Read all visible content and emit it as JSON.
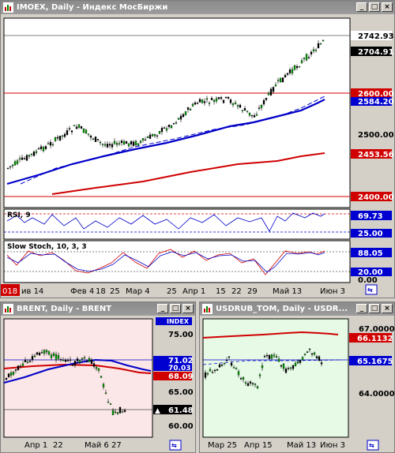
{
  "main": {
    "title": "IMOEX, Daily - Индекс МосБиржи",
    "prices": {
      "p1": "2742.93",
      "p2": "2704.91",
      "p3": "2600.00",
      "p4": "2584.20",
      "p5": "2500.00",
      "p6": "2453.56",
      "p7": "2400.00"
    },
    "rsi_label": "RSI, 9",
    "rsi_value": "69.73",
    "rsi_level": "25.00",
    "stoch_label": "Slow Stoch, 10, 3, 3",
    "stoch_value": "88.05",
    "stoch_level": "20.00",
    "stoch_zero": "0.00",
    "xaxis": [
      "018",
      "ив 14",
      "Фев 4",
      "18",
      "25",
      "Мар 4",
      "25",
      "Апр 1",
      "15",
      "22",
      "29",
      "Май 13",
      "Июн 3"
    ]
  },
  "brent": {
    "title": "BRENT, Daily - BRENT",
    "badge": "INDEX",
    "prices": {
      "p1": "75.00",
      "p2": "71.02",
      "p3": "70.03",
      "p4": "68.09",
      "p5": "65.00",
      "p6": "61.48",
      "p7": "60.00"
    },
    "xaxis": [
      "Апр 1",
      "22",
      "Май 6",
      "27"
    ]
  },
  "usd": {
    "title": "USDRUB_TOM, Daily - USDR...",
    "prices": {
      "p1": "67.0000",
      "p2": "66.1132",
      "p3": "65.1675",
      "p4": "64.0000"
    },
    "xaxis": [
      "Мар 25",
      "Апр 15",
      "Май 13",
      "Июн 3"
    ]
  },
  "colors": {
    "bull": "#00a000",
    "bear": "#000000",
    "ma_blue": "#0000c8",
    "ma_red": "#d00000",
    "level_red": "#d00000",
    "price_bg": "#000000",
    "price_fg": "#ffffff",
    "red_bg": "#d00000",
    "blue_bg": "#0000d0",
    "pink_bg": "#fbe7e7",
    "green_bg": "#e6fae6"
  }
}
